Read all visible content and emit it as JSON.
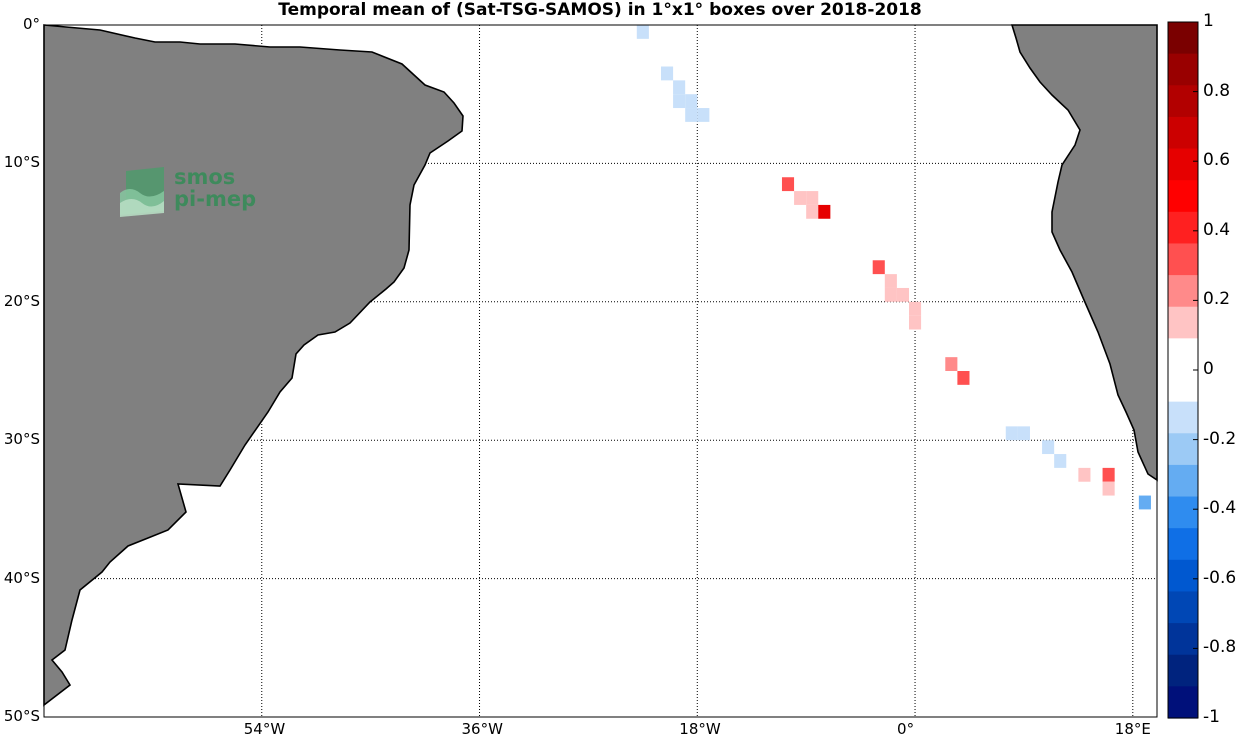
{
  "title": "Temporal mean of (Sat-TSG-SAMOS) in 1°x1° boxes over 2018-2018",
  "logo": {
    "line1": "smos",
    "line2": "pi-mep"
  },
  "colors": {
    "land": "#808080",
    "coast": "#000000",
    "grid": "#000000"
  },
  "map": {
    "lon_range": [
      -72,
      20
    ],
    "lat_range": [
      -50,
      0
    ],
    "x_ticks": [
      {
        "lon": -54,
        "label": "54°W"
      },
      {
        "lon": -36,
        "label": "36°W"
      },
      {
        "lon": -18,
        "label": "18°W"
      },
      {
        "lon": 0,
        "label": "0°"
      },
      {
        "lon": 18,
        "label": "18°E"
      }
    ],
    "y_ticks": [
      {
        "lat": 0,
        "label": "0°"
      },
      {
        "lat": -10,
        "label": "10°S"
      },
      {
        "lat": -20,
        "label": "20°S"
      },
      {
        "lat": -30,
        "label": "30°S"
      },
      {
        "lat": -40,
        "label": "40°S"
      },
      {
        "lat": -50,
        "label": "50°S"
      }
    ]
  },
  "colorbar": {
    "range": [
      -1,
      1
    ],
    "labels": [
      "1",
      "0.8",
      "0.6",
      "0.4",
      "0.2",
      "0",
      "-0.2",
      "-0.4",
      "-0.6",
      "-0.8",
      "-1"
    ],
    "colors_top_to_bottom": [
      "#7a0000",
      "#990000",
      "#b20000",
      "#cc0000",
      "#e60000",
      "#ff0000",
      "#ff2020",
      "#ff5050",
      "#ff8a8a",
      "#ffc4c4",
      "#ffffff",
      "#ffffff",
      "#c8e0fa",
      "#9ccaf5",
      "#64acf2",
      "#2f8cef",
      "#0f6fe6",
      "#0058d0",
      "#0047b5",
      "#00349a",
      "#00237e",
      "#00107a"
    ]
  },
  "chart_data": {
    "type": "heatmap",
    "title": "Temporal mean of (Sat-TSG-SAMOS) in 1°x1° boxes over 2018-2018",
    "grid_resolution_deg": 1,
    "cells": [
      {
        "lon": -22.5,
        "lat": -0.5,
        "value": -0.15
      },
      {
        "lon": -20.5,
        "lat": -3.5,
        "value": -0.15
      },
      {
        "lon": -19.5,
        "lat": -4.5,
        "value": -0.15
      },
      {
        "lon": -19.5,
        "lat": -5.5,
        "value": -0.15
      },
      {
        "lon": -18.5,
        "lat": -5.5,
        "value": -0.15
      },
      {
        "lon": -18.5,
        "lat": -6.5,
        "value": -0.15
      },
      {
        "lon": -17.5,
        "lat": -6.5,
        "value": -0.15
      },
      {
        "lon": -10.5,
        "lat": -11.5,
        "value": 0.35
      },
      {
        "lon": -9.5,
        "lat": -12.5,
        "value": 0.15
      },
      {
        "lon": -8.5,
        "lat": -12.5,
        "value": 0.15
      },
      {
        "lon": -8.5,
        "lat": -13.5,
        "value": 0.15
      },
      {
        "lon": -7.5,
        "lat": -13.5,
        "value": 0.55
      },
      {
        "lon": -3.0,
        "lat": -17.5,
        "value": 0.35
      },
      {
        "lon": -2.0,
        "lat": -18.5,
        "value": 0.15
      },
      {
        "lon": -2.0,
        "lat": -19.5,
        "value": 0.15
      },
      {
        "lon": -1.0,
        "lat": -19.5,
        "value": 0.15
      },
      {
        "lon": 0.0,
        "lat": -20.5,
        "value": 0.15
      },
      {
        "lon": 0.0,
        "lat": -21.5,
        "value": 0.15
      },
      {
        "lon": 3.0,
        "lat": -24.5,
        "value": 0.25
      },
      {
        "lon": 4.0,
        "lat": -25.5,
        "value": 0.35
      },
      {
        "lon": 8.0,
        "lat": -29.5,
        "value": -0.15
      },
      {
        "lon": 9.0,
        "lat": -29.5,
        "value": -0.15
      },
      {
        "lon": 11.0,
        "lat": -30.5,
        "value": -0.15
      },
      {
        "lon": 12.0,
        "lat": -31.5,
        "value": -0.15
      },
      {
        "lon": 14.0,
        "lat": -32.5,
        "value": 0.15
      },
      {
        "lon": 16.0,
        "lat": -32.5,
        "value": 0.35
      },
      {
        "lon": 16.0,
        "lat": -33.5,
        "value": 0.15
      },
      {
        "lon": 19.0,
        "lat": -34.5,
        "value": -0.35
      }
    ]
  }
}
